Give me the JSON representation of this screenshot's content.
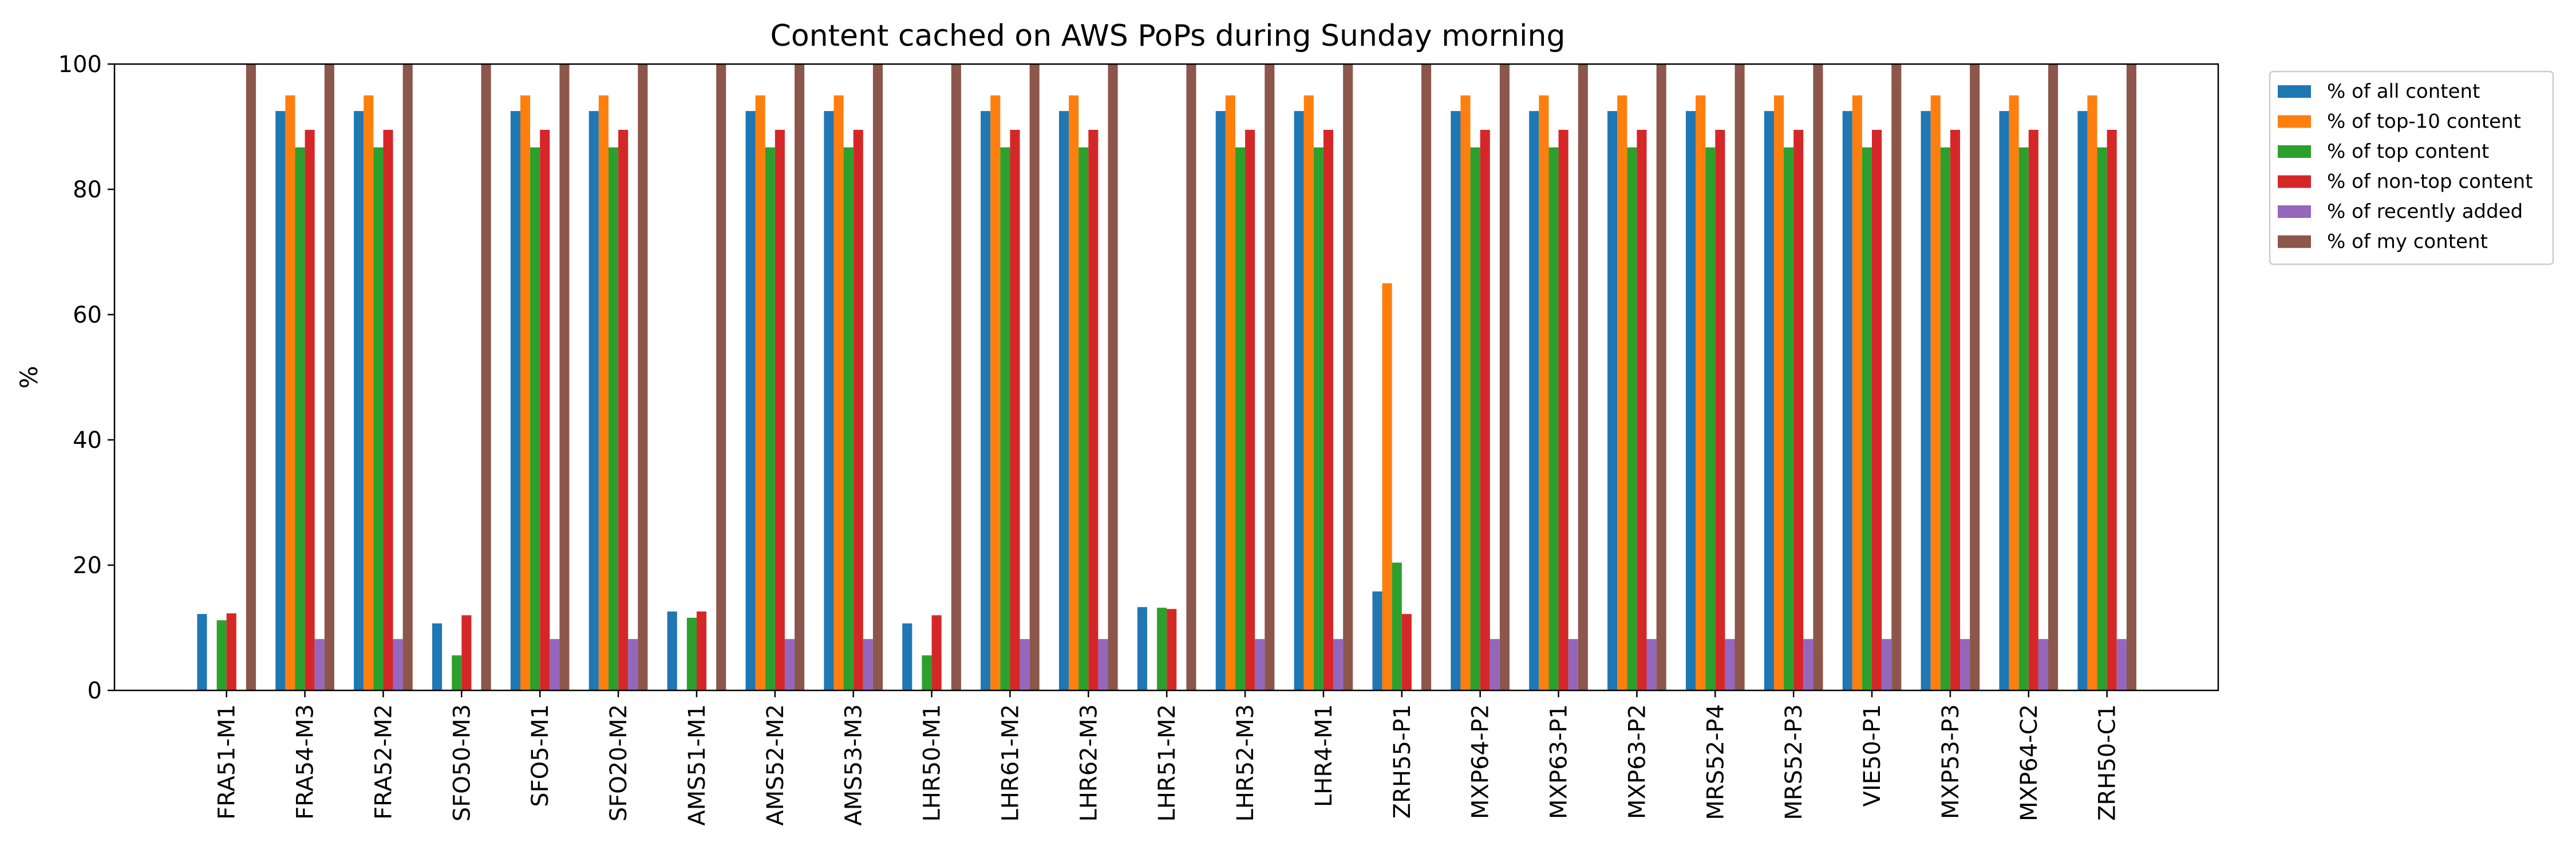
{
  "chart_data": {
    "type": "bar",
    "title": "Content cached on AWS PoPs during Sunday morning",
    "xlabel": "",
    "ylabel": "%",
    "ylim": [
      0,
      100
    ],
    "yticks": [
      0,
      20,
      40,
      60,
      80,
      100
    ],
    "grid": false,
    "legend_position": "outside-top-right",
    "categories": [
      "FRA51-M1",
      "FRA54-M3",
      "FRA52-M2",
      "SFO50-M3",
      "SFO5-M1",
      "SFO20-M2",
      "AMS51-M1",
      "AMS52-M2",
      "AMS53-M3",
      "LHR50-M1",
      "LHR61-M2",
      "LHR62-M3",
      "LHR51-M2",
      "LHR52-M3",
      "LHR4-M1",
      "ZRH55-P1",
      "MXP64-P2",
      "MXP63-P1",
      "MXP63-P2",
      "MRS52-P4",
      "MRS52-P3",
      "VIE50-P1",
      "MXP53-P3",
      "MXP64-C2",
      "ZRH50-C1"
    ],
    "series": [
      {
        "name": "% of all content",
        "color": "#1f77b4",
        "values": [
          12.2,
          92.5,
          92.5,
          10.7,
          92.5,
          92.5,
          12.6,
          92.5,
          92.5,
          10.7,
          92.5,
          92.5,
          13.3,
          92.5,
          92.5,
          15.8,
          92.5,
          92.5,
          92.5,
          92.5,
          92.5,
          92.5,
          92.5,
          92.5,
          92.5
        ]
      },
      {
        "name": "% of top-10 content",
        "color": "#ff7f0e",
        "values": [
          0,
          95,
          95,
          0,
          95,
          95,
          0,
          95,
          95,
          0,
          95,
          95,
          0,
          95,
          95,
          65,
          95,
          95,
          95,
          95,
          95,
          95,
          95,
          95,
          95
        ]
      },
      {
        "name": "% of top content",
        "color": "#2ca02c",
        "values": [
          11.2,
          86.7,
          86.7,
          5.6,
          86.7,
          86.7,
          11.6,
          86.7,
          86.7,
          5.6,
          86.7,
          86.7,
          13.2,
          86.7,
          86.7,
          20.4,
          86.7,
          86.7,
          86.7,
          86.7,
          86.7,
          86.7,
          86.7,
          86.7,
          86.7
        ]
      },
      {
        "name": "% of non-top content",
        "color": "#d62728",
        "values": [
          12.3,
          89.5,
          89.5,
          12.0,
          89.5,
          89.5,
          12.6,
          89.5,
          89.5,
          12.0,
          89.5,
          89.5,
          13.0,
          89.5,
          89.5,
          12.2,
          89.5,
          89.5,
          89.5,
          89.5,
          89.5,
          89.5,
          89.5,
          89.5,
          89.5
        ]
      },
      {
        "name": "% of recently added",
        "color": "#9467bd",
        "values": [
          0,
          8.2,
          8.2,
          0,
          8.2,
          8.2,
          0,
          8.2,
          8.2,
          0,
          8.2,
          8.2,
          0,
          8.2,
          8.2,
          0,
          8.2,
          8.2,
          8.2,
          8.2,
          8.2,
          8.2,
          8.2,
          8.2,
          8.2
        ]
      },
      {
        "name": "% of my content",
        "color": "#8c564b",
        "values": [
          100,
          100,
          100,
          100,
          100,
          100,
          100,
          100,
          100,
          100,
          100,
          100,
          100,
          100,
          100,
          100,
          100,
          100,
          100,
          100,
          100,
          100,
          100,
          100,
          100
        ]
      }
    ]
  }
}
